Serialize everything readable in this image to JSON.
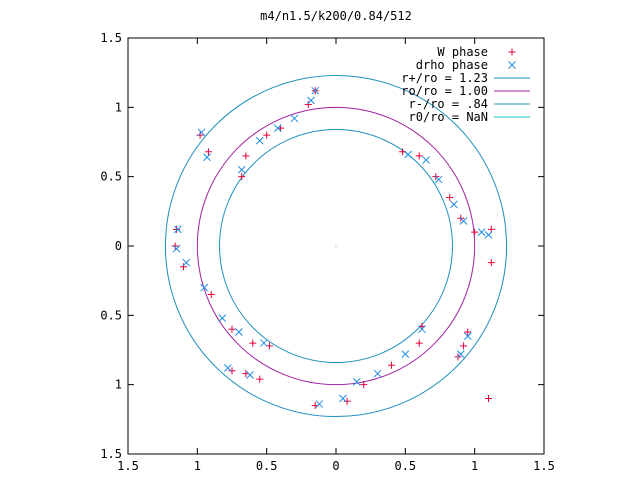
{
  "chart_data": {
    "type": "scatter",
    "title": "m4/n1.5/k200/0.84/512",
    "xlabel": "",
    "ylabel": "",
    "xlim": [
      -1.5,
      1.5
    ],
    "ylim": [
      -1.5,
      1.5
    ],
    "grid": false,
    "legend_position": "top-right",
    "x_ticks": [
      -1.5,
      -1,
      -0.5,
      0,
      0.5,
      1,
      1.5
    ],
    "y_ticks": [
      -1.5,
      -1,
      -0.5,
      0,
      0.5,
      1,
      1.5
    ],
    "x_tick_labels": [
      "1.5",
      "1",
      "0.5",
      "0",
      "0.5",
      "1",
      "1.5"
    ],
    "y_tick_labels": [
      "1.5",
      "1",
      "0.5",
      "0",
      "0.5",
      "1",
      "1.5"
    ],
    "circles": [
      {
        "name": "r+/ro = 1.23",
        "r": 1.23,
        "color": "#1f8fbf"
      },
      {
        "name": "ro/ro = 1.00",
        "r": 1.0,
        "color": "#a020a0"
      },
      {
        "name": "r-/ro = .84",
        "r": 0.84,
        "color": "#1f8fbf"
      },
      {
        "name": "r0/ro = NaN",
        "r": null,
        "color": "#20c0c0"
      }
    ],
    "series": [
      {
        "name": "W phase",
        "marker": "plus",
        "color": "#e8003a",
        "points": [
          [
            -0.15,
            1.12
          ],
          [
            -0.2,
            1.02
          ],
          [
            -0.4,
            0.85
          ],
          [
            -0.5,
            0.8
          ],
          [
            -0.65,
            0.65
          ],
          [
            -0.68,
            0.5
          ],
          [
            -0.98,
            0.8
          ],
          [
            -0.92,
            0.68
          ],
          [
            -1.15,
            0.12
          ],
          [
            -1.16,
            0.0
          ],
          [
            0.48,
            0.68
          ],
          [
            0.6,
            0.65
          ],
          [
            0.72,
            0.5
          ],
          [
            0.82,
            0.35
          ],
          [
            0.9,
            0.2
          ],
          [
            1.0,
            0.1
          ],
          [
            1.12,
            0.12
          ],
          [
            1.12,
            -0.12
          ],
          [
            -1.1,
            -0.15
          ],
          [
            -0.9,
            -0.35
          ],
          [
            -0.75,
            -0.6
          ],
          [
            -0.6,
            -0.7
          ],
          [
            -0.48,
            -0.72
          ],
          [
            -0.75,
            -0.9
          ],
          [
            -0.65,
            -0.92
          ],
          [
            -0.55,
            -0.96
          ],
          [
            -0.15,
            -1.15
          ],
          [
            0.08,
            -1.12
          ],
          [
            0.2,
            -1.0
          ],
          [
            0.4,
            -0.86
          ],
          [
            0.6,
            -0.7
          ],
          [
            0.62,
            -0.58
          ],
          [
            0.88,
            -0.8
          ],
          [
            0.92,
            -0.72
          ],
          [
            0.95,
            -0.62
          ],
          [
            1.1,
            -1.1
          ]
        ]
      },
      {
        "name": "drho phase",
        "marker": "x",
        "color": "#1f8fe8",
        "points": [
          [
            -0.15,
            1.12
          ],
          [
            -0.18,
            1.05
          ],
          [
            -0.3,
            0.92
          ],
          [
            -0.42,
            0.85
          ],
          [
            -0.55,
            0.76
          ],
          [
            -0.68,
            0.55
          ],
          [
            -0.97,
            0.82
          ],
          [
            -0.93,
            0.64
          ],
          [
            -1.14,
            0.12
          ],
          [
            -1.15,
            -0.02
          ],
          [
            0.52,
            0.66
          ],
          [
            0.65,
            0.62
          ],
          [
            0.74,
            0.48
          ],
          [
            0.85,
            0.3
          ],
          [
            0.92,
            0.18
          ],
          [
            1.05,
            0.1
          ],
          [
            1.1,
            0.08
          ],
          [
            -1.08,
            -0.12
          ],
          [
            -0.95,
            -0.3
          ],
          [
            -0.82,
            -0.52
          ],
          [
            -0.7,
            -0.62
          ],
          [
            -0.52,
            -0.7
          ],
          [
            -0.78,
            -0.88
          ],
          [
            -0.62,
            -0.93
          ],
          [
            -0.12,
            -1.14
          ],
          [
            0.05,
            -1.1
          ],
          [
            0.15,
            -0.98
          ],
          [
            0.3,
            -0.92
          ],
          [
            0.5,
            -0.78
          ],
          [
            0.62,
            -0.6
          ],
          [
            0.9,
            -0.78
          ],
          [
            0.95,
            -0.65
          ]
        ]
      }
    ]
  }
}
